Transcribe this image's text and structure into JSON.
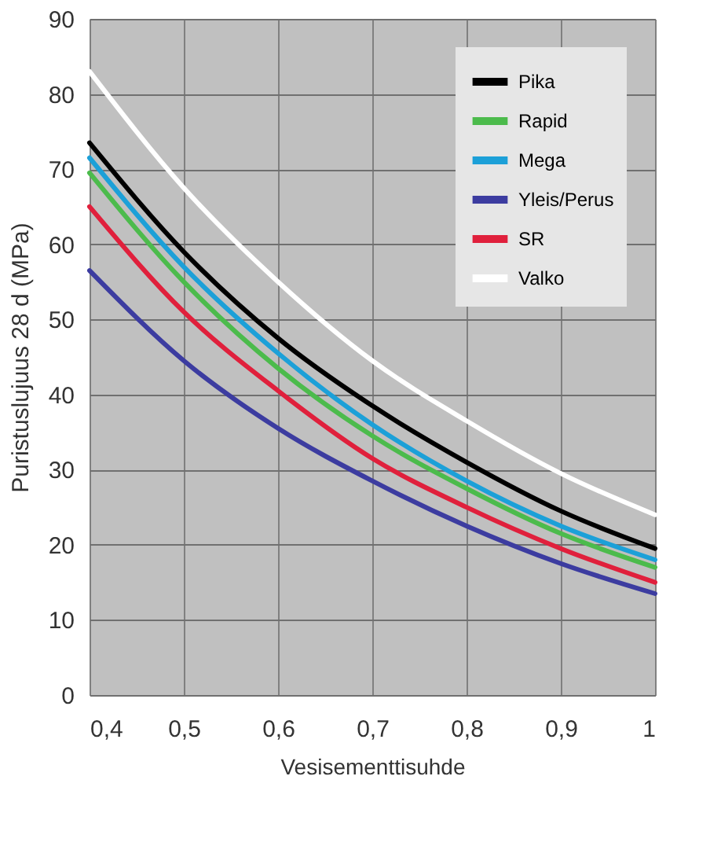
{
  "chart_data": {
    "type": "line",
    "xlabel": "Vesisementtisuhde",
    "ylabel": "Puristuslujuus 28 d (MPa)",
    "x": [
      0.4,
      0.5,
      0.6,
      0.7,
      0.8,
      0.9,
      1.0
    ],
    "series": [
      {
        "name": "Pika",
        "color": "#000000",
        "values": [
          73.5,
          59,
          47.5,
          38.5,
          31,
          24.5,
          19.5
        ]
      },
      {
        "name": "Rapid",
        "color": "#4cbb4c",
        "values": [
          69.5,
          55,
          43.5,
          34.5,
          27.5,
          21.5,
          17
        ]
      },
      {
        "name": "Mega",
        "color": "#1ca0d8",
        "values": [
          71.5,
          57,
          45.5,
          36,
          28.5,
          22.5,
          18
        ]
      },
      {
        "name": "Yleis/Perus",
        "color": "#3c3ca0",
        "values": [
          56.5,
          44.5,
          35.5,
          28.5,
          22.5,
          17.5,
          13.5
        ]
      },
      {
        "name": "SR",
        "color": "#e0203c",
        "values": [
          65,
          51,
          40.5,
          31.5,
          25,
          19.5,
          15
        ]
      },
      {
        "name": "Valko",
        "color": "#ffffff",
        "values": [
          83,
          67.5,
          55,
          44.5,
          36.5,
          29.5,
          24
        ]
      }
    ],
    "xlim": [
      0.4,
      1.0
    ],
    "ylim": [
      0,
      90
    ],
    "xticks": [
      {
        "value": 0.4,
        "label": "0,4"
      },
      {
        "value": 0.5,
        "label": "0,5"
      },
      {
        "value": 0.6,
        "label": "0,6"
      },
      {
        "value": 0.7,
        "label": "0,7"
      },
      {
        "value": 0.8,
        "label": "0,8"
      },
      {
        "value": 0.9,
        "label": "0,9"
      },
      1
    ],
    "yticks": [
      0,
      10,
      20,
      30,
      40,
      50,
      60,
      70,
      80,
      90
    ],
    "grid": true,
    "legend": "top right",
    "marker": "none",
    "line_style": "solid"
  }
}
